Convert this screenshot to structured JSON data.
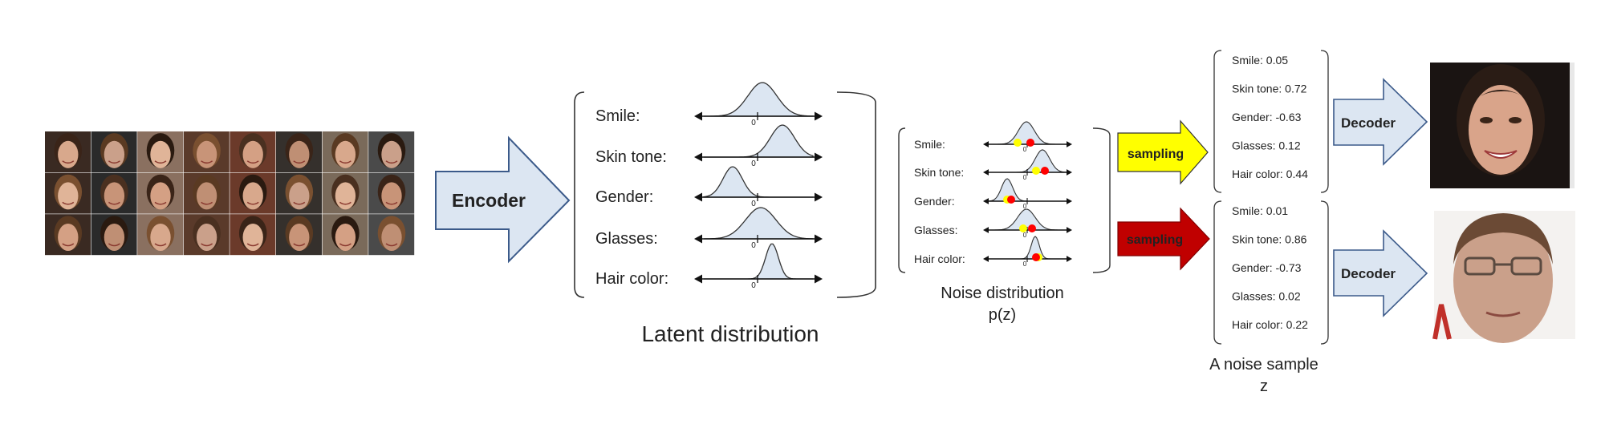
{
  "encoder": {
    "label": "Encoder"
  },
  "latent": {
    "attributes": [
      "Smile:",
      "Skin tone:",
      "Gender:",
      "Glasses:",
      "Hair color:"
    ],
    "zero_tick": "0",
    "caption": "Latent distribution"
  },
  "noise": {
    "attributes": [
      "Smile:",
      "Skin tone:",
      "Gender:",
      "Glasses:",
      "Hair color:"
    ],
    "zero_tick": "0",
    "caption_line1": "Noise distribution",
    "caption_line2": "p(z)"
  },
  "sampling": [
    {
      "label": "sampling",
      "color": "#ffff00"
    },
    {
      "label": "sampling",
      "color": "#c00000"
    }
  ],
  "samples": [
    {
      "values": [
        "Smile: 0.05",
        "Skin tone: 0.72",
        "Gender: -0.63",
        "Glasses: 0.12",
        "Hair color: 0.44"
      ]
    },
    {
      "values": [
        "Smile: 0.01",
        "Skin tone: 0.86",
        "Gender: -0.73",
        "Glasses: 0.02",
        "Hair color: 0.22"
      ]
    }
  ],
  "samples_caption": {
    "line1": "A noise sample",
    "line2": "z"
  },
  "decoder": {
    "label": "Decoder"
  },
  "colors": {
    "arrow_fill": "#dce6f2",
    "arrow_stroke": "#3b5a8a",
    "curve_fill": "#dce6f2",
    "marker_yellow": "#ffff00",
    "marker_red": "#ff0000"
  }
}
